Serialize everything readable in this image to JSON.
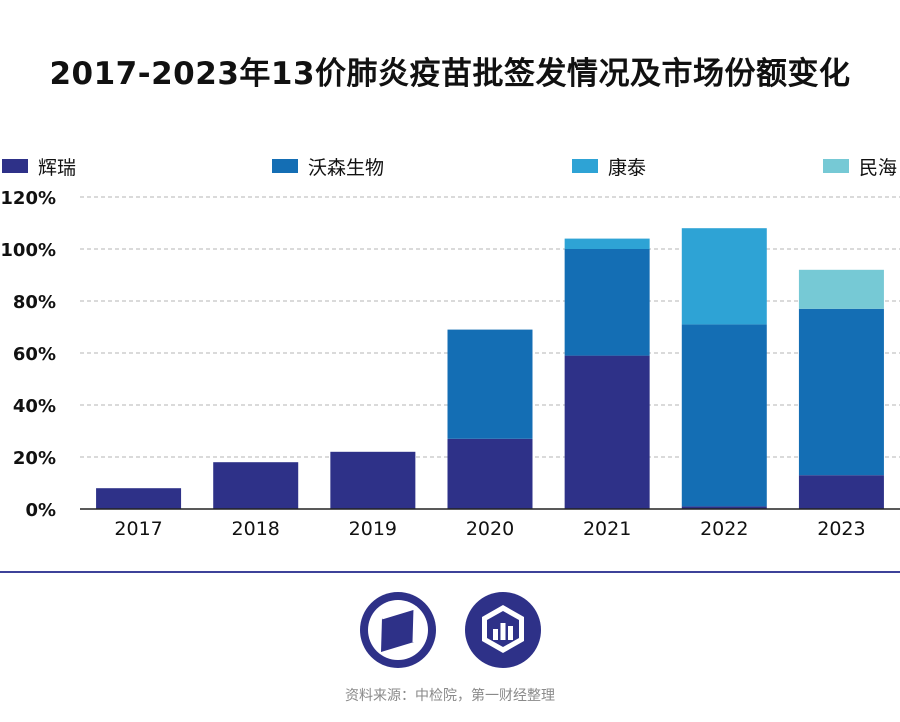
{
  "title": "2017-2023年13价肺炎疫苗批签发情况及市场份额变化",
  "legend": [
    {
      "label": "辉瑞",
      "color": "#2e3188"
    },
    {
      "label": "沃森生物",
      "color": "#146eb4"
    },
    {
      "label": "康泰",
      "color": "#2ea3d5"
    },
    {
      "label": "民海",
      "color": "#76c9d5"
    }
  ],
  "chart_data": {
    "type": "bar",
    "stacked": true,
    "categories": [
      "2017",
      "2018",
      "2019",
      "2020",
      "2021",
      "2022",
      "2023"
    ],
    "series": [
      {
        "name": "辉瑞",
        "color": "#2e3188",
        "values": [
          8,
          18,
          22,
          27,
          59,
          1,
          13
        ]
      },
      {
        "name": "沃森生物",
        "color": "#146eb4",
        "values": [
          0,
          0,
          0,
          42,
          41,
          70,
          64
        ]
      },
      {
        "name": "康泰",
        "color": "#2ea3d5",
        "values": [
          0,
          0,
          0,
          0,
          4,
          37,
          0
        ]
      },
      {
        "name": "民海",
        "color": "#76c9d5",
        "values": [
          0,
          0,
          0,
          0,
          0,
          0,
          15
        ]
      }
    ],
    "yticks": [
      "0%",
      "20%",
      "40%",
      "60%",
      "80%",
      "100%",
      "120%"
    ],
    "ylim": [
      0,
      120
    ],
    "grid": true,
    "legend_position": "top"
  },
  "logos": [
    {
      "icon": "parallelogram-logo-icon"
    },
    {
      "icon": "bar-chart-logo-icon"
    }
  ],
  "source": "资料来源：中检院，第一财经整理"
}
